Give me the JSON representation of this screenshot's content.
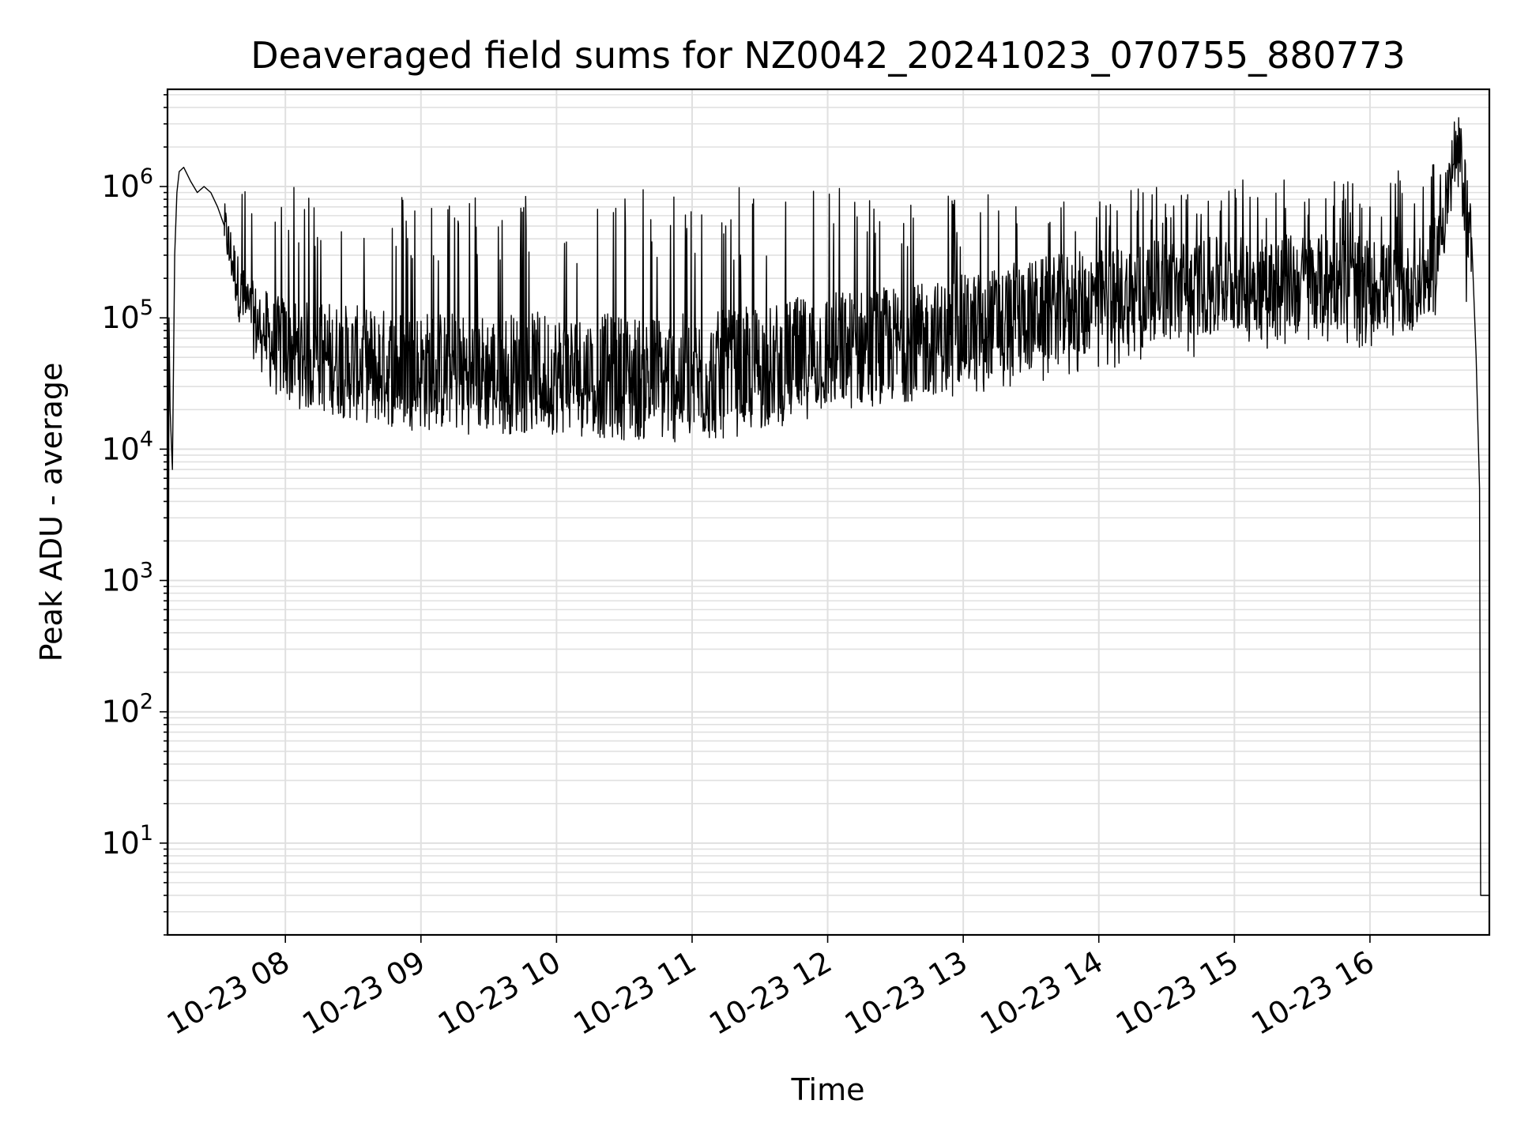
{
  "chart_data": {
    "type": "line",
    "title": "Deaveraged field sums for NZ0042_20241023_070755_880773",
    "xlabel": "Time",
    "ylabel": "Peak ADU - average",
    "yscale": "log",
    "ylim": [
      2,
      5500000
    ],
    "xlim": [
      "2024-10-23 07:07:50",
      "2024-10-23 16:52:50"
    ],
    "grid": true,
    "grid_color": "#e0e0e0",
    "line_color": "#000000",
    "x_ticks": [
      "10-23 08",
      "10-23 09",
      "10-23 10",
      "10-23 11",
      "10-23 12",
      "10-23 13",
      "10-23 14",
      "10-23 15",
      "10-23 16"
    ],
    "y_ticks": [
      {
        "base": "10",
        "exp": "1",
        "value": 10
      },
      {
        "base": "10",
        "exp": "2",
        "value": 100
      },
      {
        "base": "10",
        "exp": "3",
        "value": 1000
      },
      {
        "base": "10",
        "exp": "4",
        "value": 10000
      },
      {
        "base": "10",
        "exp": "5",
        "value": 100000
      },
      {
        "base": "10",
        "exp": "6",
        "value": 1000000
      }
    ],
    "series": [
      {
        "name": "",
        "x": [
          "2024-10-23 07:08:00",
          "2024-10-23 07:08:30",
          "2024-10-23 07:09:00",
          "2024-10-23 07:10:00",
          "2024-10-23 07:11:00",
          "2024-10-23 07:12:00",
          "2024-10-23 07:13:00",
          "2024-10-23 07:15:00",
          "2024-10-23 07:18:00",
          "2024-10-23 07:21:00",
          "2024-10-23 07:24:00",
          "2024-10-23 07:27:00",
          "2024-10-23 07:30:00",
          "2024-10-23 07:33:00",
          "2024-10-23 07:36:00",
          "2024-10-23 07:40:00",
          "2024-10-23 07:45:00",
          "2024-10-23 07:50:00",
          "2024-10-23 07:55:00",
          "2024-10-23 08:00:00",
          "2024-10-23 08:10:00",
          "2024-10-23 08:20:00",
          "2024-10-23 08:30:00",
          "2024-10-23 08:45:00",
          "2024-10-23 09:00:00",
          "2024-10-23 09:20:00",
          "2024-10-23 09:40:00",
          "2024-10-23 10:00:00",
          "2024-10-23 10:20:00",
          "2024-10-23 10:40:00",
          "2024-10-23 11:00:00",
          "2024-10-23 11:20:00",
          "2024-10-23 11:40:00",
          "2024-10-23 12:00:00",
          "2024-10-23 12:20:00",
          "2024-10-23 12:40:00",
          "2024-10-23 13:00:00",
          "2024-10-23 13:20:00",
          "2024-10-23 13:40:00",
          "2024-10-23 14:00:00",
          "2024-10-23 14:20:00",
          "2024-10-23 14:40:00",
          "2024-10-23 15:00:00",
          "2024-10-23 15:20:00",
          "2024-10-23 15:40:00",
          "2024-10-23 16:00:00",
          "2024-10-23 16:15:00",
          "2024-10-23 16:25:00",
          "2024-10-23 16:30:00",
          "2024-10-23 16:35:00",
          "2024-10-23 16:38:00",
          "2024-10-23 16:40:00",
          "2024-10-23 16:43:00",
          "2024-10-23 16:45:00",
          "2024-10-23 16:47:00",
          "2024-10-23 16:48:30",
          "2024-10-23 16:49:00",
          "2024-10-23 16:50:00",
          "2024-10-23 16:51:00",
          "2024-10-23 16:52:30"
        ],
        "y": [
          2,
          100000,
          20000,
          7000,
          300000,
          900000,
          1300000,
          1400000,
          1100000,
          900000,
          1000000,
          900000,
          700000,
          500000,
          300000,
          150000,
          100000,
          80000,
          60000,
          60000,
          50000,
          50000,
          45000,
          42000,
          40000,
          38000,
          38000,
          38000,
          36000,
          35000,
          34000,
          38000,
          45000,
          55000,
          60000,
          65000,
          80000,
          100000,
          120000,
          140000,
          160000,
          170000,
          180000,
          190000,
          190000,
          180000,
          160000,
          200000,
          350000,
          900000,
          1800000,
          1500000,
          700000,
          300000,
          50000,
          5000,
          4,
          4,
          4,
          4
        ],
        "noise_band_y": {
          "x": [
            "2024-10-23 07:30:00",
            "2024-10-23 08:00:00",
            "2024-10-23 09:00:00",
            "2024-10-23 10:00:00",
            "2024-10-23 11:00:00",
            "2024-10-23 12:00:00",
            "2024-10-23 13:00:00",
            "2024-10-23 14:00:00",
            "2024-10-23 15:00:00",
            "2024-10-23 16:00:00",
            "2024-10-23 16:30:00"
          ],
          "low": [
            400000,
            30000,
            18000,
            18000,
            15000,
            22000,
            25000,
            40000,
            55000,
            60000,
            100000
          ],
          "high": [
            1500000,
            1000000,
            900000,
            900000,
            1000000,
            1100000,
            900000,
            1000000,
            1200000,
            1200000,
            1500000
          ]
        }
      }
    ]
  }
}
